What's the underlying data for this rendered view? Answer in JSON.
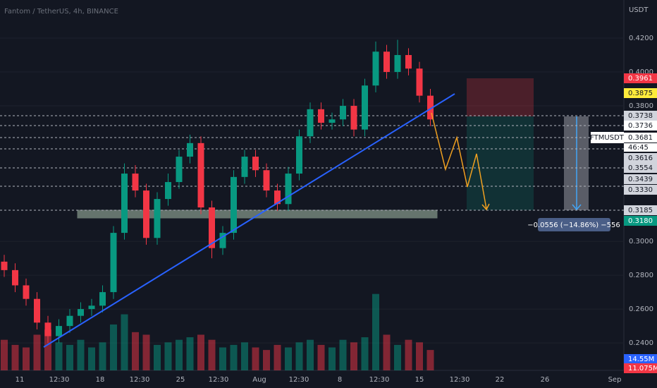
{
  "header": {
    "title": "Fantom / TetherUS, 4h, BINANCE",
    "currency": "USDT"
  },
  "chart_data": {
    "type": "candlestick",
    "open": [
      0.288,
      0.283,
      0.274,
      0.266,
      0.252,
      0.244,
      0.25,
      0.256,
      0.26,
      0.262,
      0.27,
      0.305,
      0.34,
      0.33,
      0.302,
      0.325,
      0.335,
      0.35,
      0.358,
      0.32,
      0.296,
      0.305,
      0.338,
      0.35,
      0.342,
      0.33,
      0.322,
      0.34,
      0.362,
      0.378,
      0.37,
      0.372,
      0.38,
      0.366,
      0.392,
      0.412,
      0.4,
      0.41,
      0.402,
      0.386
    ],
    "high": [
      0.292,
      0.287,
      0.278,
      0.27,
      0.256,
      0.254,
      0.26,
      0.264,
      0.266,
      0.274,
      0.309,
      0.346,
      0.345,
      0.334,
      0.329,
      0.34,
      0.354,
      0.363,
      0.362,
      0.324,
      0.309,
      0.342,
      0.354,
      0.354,
      0.346,
      0.334,
      0.344,
      0.366,
      0.382,
      0.382,
      0.376,
      0.384,
      0.384,
      0.396,
      0.418,
      0.416,
      0.419,
      0.414,
      0.406,
      0.39
    ],
    "low": [
      0.279,
      0.27,
      0.262,
      0.248,
      0.24,
      0.24,
      0.246,
      0.252,
      0.256,
      0.258,
      0.266,
      0.301,
      0.326,
      0.298,
      0.298,
      0.321,
      0.331,
      0.346,
      0.316,
      0.29,
      0.292,
      0.301,
      0.334,
      0.338,
      0.326,
      0.318,
      0.318,
      0.336,
      0.358,
      0.366,
      0.366,
      0.368,
      0.362,
      0.362,
      0.388,
      0.396,
      0.396,
      0.398,
      0.382,
      0.368
    ],
    "close": [
      0.283,
      0.274,
      0.266,
      0.252,
      0.244,
      0.25,
      0.256,
      0.26,
      0.262,
      0.27,
      0.305,
      0.34,
      0.33,
      0.302,
      0.325,
      0.335,
      0.35,
      0.358,
      0.32,
      0.296,
      0.305,
      0.338,
      0.35,
      0.342,
      0.33,
      0.322,
      0.34,
      0.362,
      0.378,
      0.37,
      0.372,
      0.38,
      0.366,
      0.392,
      0.412,
      0.4,
      0.41,
      0.402,
      0.386,
      0.372
    ],
    "volume": [
      12,
      10,
      9,
      14,
      16,
      11,
      10,
      12,
      9,
      11,
      18,
      22,
      15,
      14,
      10,
      11,
      12,
      13,
      14,
      12,
      9,
      10,
      11,
      9,
      8,
      10,
      9,
      11,
      12,
      10,
      9,
      12,
      11,
      13,
      30,
      14,
      10,
      12,
      11,
      8
    ],
    "volume_lim": [
      0,
      36
    ],
    "up_color": "#089981",
    "down_color": "#f23645",
    "ylim": [
      0.2238,
      0.4425
    ],
    "yticks": [
      {
        "value": 0.24,
        "label": "0.2400"
      },
      {
        "value": 0.26,
        "label": "0.2600"
      },
      {
        "value": 0.28,
        "label": "0.2800"
      },
      {
        "value": 0.3,
        "label": "0.3000"
      },
      {
        "value": 0.38,
        "label": "0.3800"
      },
      {
        "value": 0.4,
        "label": "0.4000"
      },
      {
        "value": 0.42,
        "label": "0.4200"
      }
    ],
    "x_labels": [
      "11",
      "12:30",
      "18",
      "12:30",
      "25",
      "12:30",
      "Aug",
      "12:30",
      "8",
      "12:30",
      "15",
      "12:30",
      "22",
      "26",
      "Sep"
    ],
    "price_labels": [
      "0.3961",
      "0.3875",
      "0.3738",
      "0.3736",
      "0.3681",
      "0.3616",
      "0.3554",
      "0.3439",
      "0.3330",
      "0.3185",
      "0.3180"
    ],
    "symbol": "FTMUSDT",
    "countdown": "46:45",
    "volume_labels": [
      "14.55M",
      "11.075M"
    ],
    "measure_label": "−0.0556 (−14.86%) −556"
  }
}
